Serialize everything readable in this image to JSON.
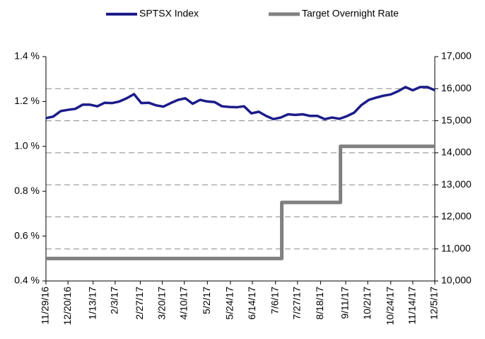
{
  "chart_data": {
    "type": "line",
    "series": [
      {
        "name": "SPTSX Index",
        "color": "#1c1c8a",
        "axis": "y2",
        "x": [
          "11/29/16",
          "12/6/16",
          "12/13/16",
          "12/20/16",
          "12/27/16",
          "1/3/17",
          "1/10/17",
          "1/17/17",
          "1/24/17",
          "1/31/17",
          "2/7/17",
          "2/14/17",
          "2/21/17",
          "2/28/17",
          "3/7/17",
          "3/14/17",
          "3/21/17",
          "3/28/17",
          "4/4/17",
          "4/11/17",
          "4/18/17",
          "4/25/17",
          "5/2/17",
          "5/9/17",
          "5/16/17",
          "5/23/17",
          "5/30/17",
          "6/6/17",
          "6/13/17",
          "6/20/17",
          "6/27/17",
          "7/4/17",
          "7/11/17",
          "7/18/17",
          "7/25/17",
          "8/1/17",
          "8/8/17",
          "8/15/17",
          "8/22/17",
          "8/29/17",
          "9/5/17",
          "9/12/17",
          "9/19/17",
          "9/26/17",
          "10/3/17",
          "10/10/17",
          "10/17/17",
          "10/24/17",
          "10/31/17",
          "11/7/17",
          "11/14/17",
          "11/21/17",
          "11/28/17",
          "12/5/17"
        ],
        "values": [
          15080,
          15130,
          15300,
          15340,
          15370,
          15500,
          15500,
          15450,
          15560,
          15550,
          15600,
          15700,
          15830,
          15550,
          15560,
          15480,
          15440,
          15550,
          15650,
          15700,
          15530,
          15650,
          15600,
          15580,
          15450,
          15430,
          15420,
          15450,
          15230,
          15280,
          15150,
          15050,
          15100,
          15200,
          15180,
          15200,
          15150,
          15150,
          15050,
          15100,
          15060,
          15140,
          15250,
          15490,
          15650,
          15720,
          15780,
          15820,
          15920,
          16050,
          15950,
          16050,
          16050,
          15950
        ]
      },
      {
        "name": "Target Overnight Rate",
        "color": "#808080",
        "axis": "y",
        "step": true,
        "x": [
          "11/29/16",
          "7/12/17",
          "9/6/17",
          "12/5/17"
        ],
        "values": [
          0.5,
          0.75,
          1.0,
          1.0
        ]
      }
    ],
    "xlim": [
      "11/29/16",
      "12/5/17"
    ],
    "xticks": [
      "11/29/16",
      "12/20/16",
      "1/13/17",
      "2/3/17",
      "2/27/17",
      "3/20/17",
      "4/10/17",
      "5/2/17",
      "5/24/17",
      "6/14/17",
      "7/6/17",
      "7/27/17",
      "8/18/17",
      "9/11/17",
      "10/2/17",
      "10/24/17",
      "11/14/17",
      "12/5/17"
    ],
    "ylim": [
      0.4,
      1.4
    ],
    "yticks": [
      {
        "value": 0.4,
        "label": "0.4 %"
      },
      {
        "value": 0.6,
        "label": "0.6 %"
      },
      {
        "value": 0.8,
        "label": "0.8 %"
      },
      {
        "value": 1.0,
        "label": "1.0 %"
      },
      {
        "value": 1.2,
        "label": "1.2 %"
      },
      {
        "value": 1.4,
        "label": "1.4 %"
      }
    ],
    "y2lim": [
      10000,
      17000
    ],
    "y2ticks": [
      {
        "value": 10000,
        "label": "10,000"
      },
      {
        "value": 11000,
        "label": "11,000"
      },
      {
        "value": 12000,
        "label": "12,000"
      },
      {
        "value": 13000,
        "label": "13,000"
      },
      {
        "value": 14000,
        "label": "14,000"
      },
      {
        "value": 15000,
        "label": "15,000"
      },
      {
        "value": 16000,
        "label": "16,000"
      },
      {
        "value": 17000,
        "label": "17,000"
      }
    ],
    "grid": "y2",
    "legend": "top"
  }
}
